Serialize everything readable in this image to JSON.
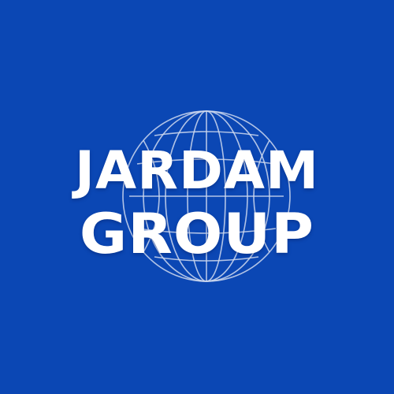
{
  "logo": {
    "line1": "JARDAM",
    "line2": "GROUP",
    "icon": "globe-wireframe-icon",
    "colors": {
      "background": "#0b47b4",
      "text": "#ffffff",
      "globe_lines": "#cfd9ee"
    }
  }
}
